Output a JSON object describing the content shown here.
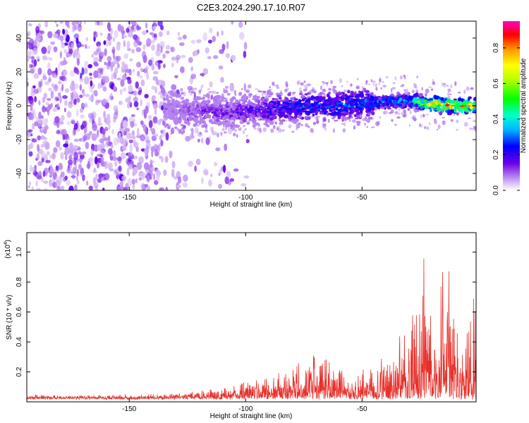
{
  "title": "C2E3.2024.290.17.10.R07",
  "colorbar": {
    "label": "Normalized spectral amplitude",
    "ticks": [
      "0.0",
      "0.2",
      "0.4",
      "0.6",
      "0.8"
    ],
    "range": [
      0,
      0.95
    ]
  },
  "chart_data": [
    {
      "type": "heatmap",
      "title": "C2E3.2024.290.17.10.R07",
      "xlabel": "Height of straight line (km)",
      "ylabel": "Frequency (Hz)",
      "xlim": [
        -194,
        -1
      ],
      "ylim": [
        -50,
        50
      ],
      "x_ticks": [
        -150,
        -100,
        -50
      ],
      "x_tick_labels": [
        "-150",
        "-100",
        "-50"
      ],
      "y_ticks": [
        -40,
        -20,
        0,
        20,
        40
      ],
      "y_tick_labels": [
        "-40",
        "-20",
        "0",
        "20",
        "40"
      ],
      "ridge": {
        "description": "dominant spectral band near 0 Hz rising slightly with height",
        "x": [
          -135,
          -120,
          -105,
          -100,
          -80,
          -60,
          -45,
          -30,
          -20,
          -10,
          -1
        ],
        "frequency_hz": [
          -2,
          -3,
          -4,
          -3,
          -1,
          0,
          2,
          3,
          1,
          0,
          0
        ],
        "peak_amplitude": [
          0.1,
          0.15,
          0.2,
          0.2,
          0.3,
          0.35,
          0.35,
          0.45,
          0.85,
          0.9,
          0.9
        ]
      }
    },
    {
      "type": "line",
      "xlabel": "Height of straight line (km)",
      "ylabel": "SNR (10 * v/v)",
      "y_scale_label": "(x10",
      "y_scale_exp": "4",
      "xlim": [
        -194,
        -1
      ],
      "ylim": [
        0,
        1.13
      ],
      "x_ticks": [
        -150,
        -100,
        -50
      ],
      "x_tick_labels": [
        "-150",
        "-100",
        "-50"
      ],
      "y_ticks": [
        0.2,
        0.4,
        0.6,
        0.8,
        1.0
      ],
      "y_tick_labels": [
        "0.2",
        "0.4",
        "0.6",
        "0.8",
        "1.0"
      ],
      "series": [
        {
          "name": "SNR",
          "color": "#e8302a",
          "envelope_x": [
            -194,
            -150,
            -130,
            -115,
            -105,
            -95,
            -85,
            -80,
            -75,
            -70,
            -65,
            -60,
            -55,
            -50,
            -45,
            -40,
            -35,
            -30,
            -28,
            -25,
            -22,
            -20,
            -18,
            -15,
            -10,
            -5,
            -1
          ],
          "envelope_y": [
            0.03,
            0.03,
            0.04,
            0.07,
            0.1,
            0.14,
            0.2,
            0.26,
            0.3,
            0.38,
            0.3,
            0.22,
            0.14,
            0.18,
            0.22,
            0.28,
            0.35,
            0.5,
            0.65,
            0.8,
            1.13,
            0.7,
            0.55,
            1.05,
            0.55,
            0.55,
            0.75
          ]
        }
      ]
    }
  ]
}
